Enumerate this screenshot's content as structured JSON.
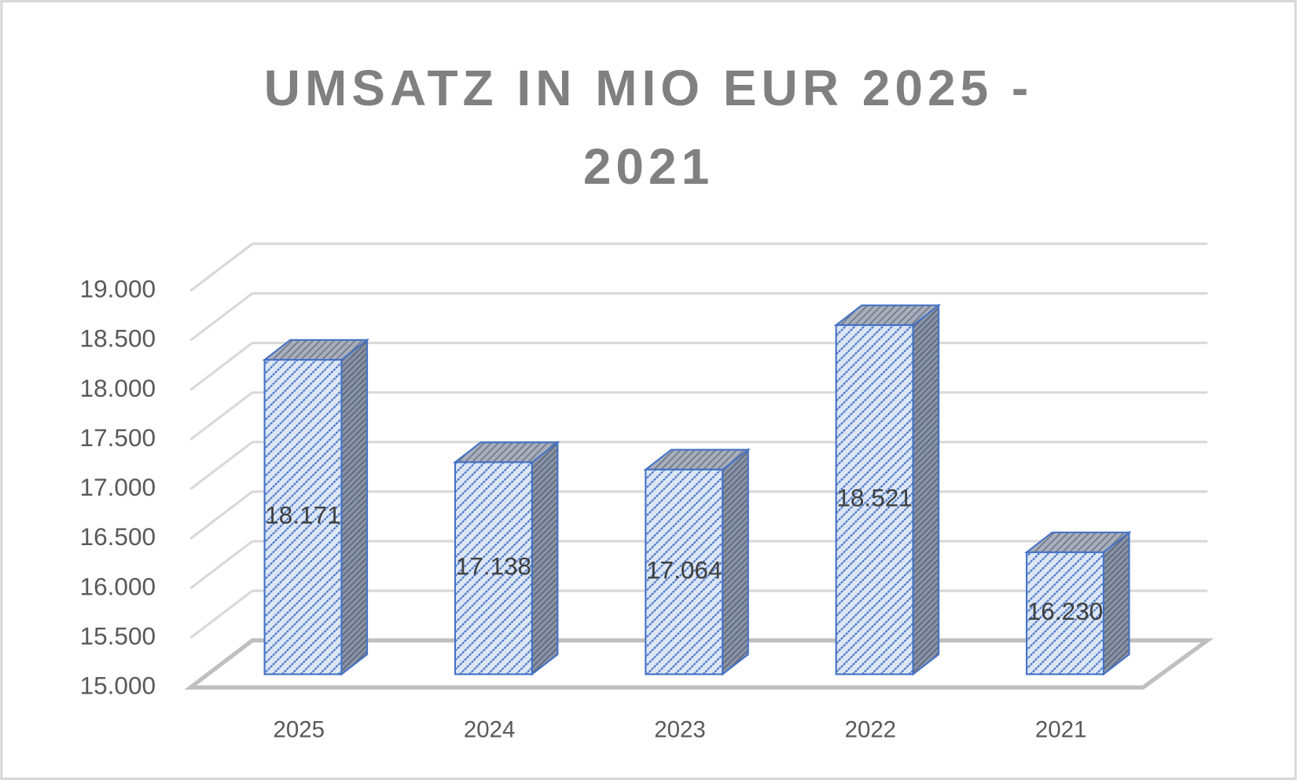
{
  "chart_data": {
    "type": "bar3d",
    "title": "UMSATZ IN MIO EUR 2025 - 2021",
    "categories": [
      "2025",
      "2024",
      "2023",
      "2022",
      "2021"
    ],
    "values": [
      18171,
      17138,
      17064,
      18521,
      16230
    ],
    "value_labels": [
      "18.171",
      "17.138",
      "17.064",
      "18.521",
      "16.230"
    ],
    "color": "#4472c4",
    "ylim": [
      15000,
      19000
    ],
    "yticks": [
      {
        "value": 15000,
        "label": "15.000"
      },
      {
        "value": 15500,
        "label": "15.500"
      },
      {
        "value": 16000,
        "label": "16.000"
      },
      {
        "value": 16500,
        "label": "16.500"
      },
      {
        "value": 17000,
        "label": "17.000"
      },
      {
        "value": 17500,
        "label": "17.500"
      },
      {
        "value": 18000,
        "label": "18.000"
      },
      {
        "value": 18500,
        "label": "18.500"
      },
      {
        "value": 19000,
        "label": "19.000"
      }
    ],
    "grid": true
  }
}
